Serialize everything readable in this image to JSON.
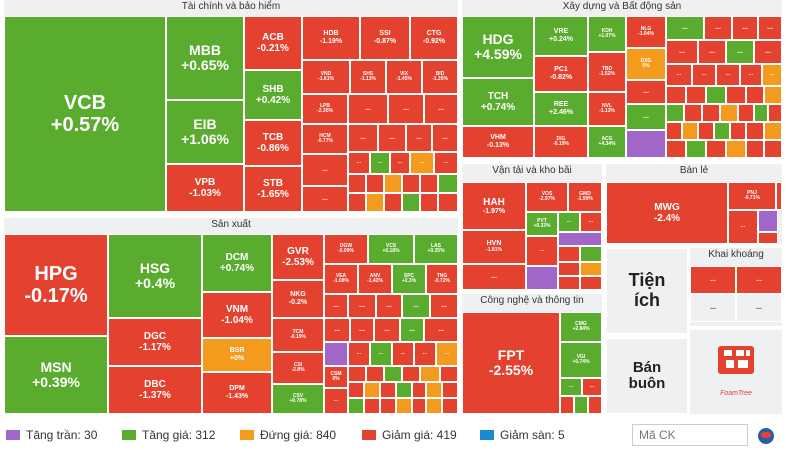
{
  "sections": {
    "finance": "Tài chính và bảo hiểm",
    "construction": "Xây dựng và Bất động sản",
    "production": "Sản xuất",
    "transport": "Vận tải và kho bãi",
    "retail": "Bán lẻ",
    "mining": "Khai khoáng",
    "tech": "Công nghệ và thông tin",
    "utilities": "Tiện ích",
    "wholesale": "Bán buôn"
  },
  "stocks": {
    "VCB": {
      "name": "VCB",
      "change": "+0.57%"
    },
    "MBB": {
      "name": "MBB",
      "change": "+0.65%"
    },
    "EIB": {
      "name": "EIB",
      "change": "+1.06%"
    },
    "VPB": {
      "name": "VPB",
      "change": "-1.03%"
    },
    "ACB": {
      "name": "ACB",
      "change": "-0.21%"
    },
    "SHB": {
      "name": "SHB",
      "change": "+0.42%"
    },
    "TCB": {
      "name": "TCB",
      "change": "-0.86%"
    },
    "STB": {
      "name": "STB",
      "change": "-1.65%"
    },
    "HDB": {
      "name": "HDB",
      "change": "-1.19%"
    },
    "SSI": {
      "name": "SSI",
      "change": "-0.87%"
    },
    "CTG": {
      "name": "CTG",
      "change": "-0.92%"
    },
    "VND": {
      "name": "VND",
      "change": "-1.61%"
    },
    "SHS": {
      "name": "SHS",
      "change": "-1.13%"
    },
    "VIX": {
      "name": "VIX",
      "change": "-1.45%"
    },
    "BID": {
      "name": "BID",
      "change": "-1.26%"
    },
    "LPB": {
      "name": "LPB",
      "change": "-2.35%"
    },
    "HCM": {
      "name": "HCM",
      "change": "-0.77%"
    },
    "HDG": {
      "name": "HDG",
      "change": "+4.59%"
    },
    "VRE": {
      "name": "VRE",
      "change": "+0.24%"
    },
    "KDH": {
      "name": "KDH",
      "change": "+1.07%"
    },
    "NLG": {
      "name": "NLG",
      "change": "-1.04%"
    },
    "PC1": {
      "name": "PC1",
      "change": "-0.82%"
    },
    "TBD": {
      "name": "TBD",
      "change": "-1.52%"
    },
    "DXG": {
      "name": "DXG",
      "change": "0%"
    },
    "TCH": {
      "name": "TCH",
      "change": "+0.74%"
    },
    "REE": {
      "name": "REE",
      "change": "+2.46%"
    },
    "NVL": {
      "name": "NVL",
      "change": "-1.13%"
    },
    "VHM": {
      "name": "VHM",
      "change": "-0.13%"
    },
    "DIG": {
      "name": "DIG",
      "change": "-0.19%"
    },
    "ACG": {
      "name": "ACG",
      "change": "+4.34%"
    },
    "HPG": {
      "name": "HPG",
      "change": "-0.17%"
    },
    "HSG": {
      "name": "HSG",
      "change": "+0.4%"
    },
    "DCM": {
      "name": "DCM",
      "change": "+0.74%"
    },
    "GVR": {
      "name": "GVR",
      "change": "-2.53%"
    },
    "DGW": {
      "name": "DGW",
      "change": "-0.09%"
    },
    "VCS": {
      "name": "VCS",
      "change": "+0.18%"
    },
    "LAS": {
      "name": "LAS",
      "change": "+0.35%"
    },
    "MSN": {
      "name": "MSN",
      "change": "+0.39%"
    },
    "DGC": {
      "name": "DGC",
      "change": "-1.17%"
    },
    "VNM": {
      "name": "VNM",
      "change": "-1.04%"
    },
    "NKG": {
      "name": "NKG",
      "change": "-0.2%"
    },
    "VEA": {
      "name": "VEA",
      "change": "-1.08%"
    },
    "ANV": {
      "name": "ANV",
      "change": "-1.42%"
    },
    "SPC": {
      "name": "SPC",
      "change": "+2.3%"
    },
    "TNG": {
      "name": "TNG",
      "change": "-0.72%"
    },
    "TCM": {
      "name": "TCM",
      "change": "-0.19%"
    },
    "BSR": {
      "name": "BSR",
      "change": "+0%"
    },
    "CSI": {
      "name": "CSI",
      "change": "-2.8%"
    },
    "DBC": {
      "name": "DBC",
      "change": "-1.37%"
    },
    "DPM": {
      "name": "DPM",
      "change": "-1.43%"
    },
    "CSV": {
      "name": "CSV",
      "change": "+0.78%"
    },
    "CSM": {
      "name": "CSM",
      "change": "0%"
    },
    "HAH": {
      "name": "HAH",
      "change": "-1.97%"
    },
    "VOS": {
      "name": "VOS",
      "change": "-2.97%"
    },
    "GMD": {
      "name": "GMD",
      "change": "-1.99%"
    },
    "PVT": {
      "name": "PVT",
      "change": "+0.33%"
    },
    "HVN": {
      "name": "HVN",
      "change": "-1.81%"
    },
    "MWG": {
      "name": "MWG",
      "change": "-2.4%"
    },
    "PNJ": {
      "name": "PNJ",
      "change": "-0.71%"
    },
    "FPT": {
      "name": "FPT",
      "change": "-2.55%"
    },
    "CMG": {
      "name": "CMG",
      "change": "+2.84%"
    },
    "VGI": {
      "name": "VGI",
      "change": "+0.74%"
    }
  },
  "more": "...",
  "legend": {
    "ceiling": "Tăng trần: 30",
    "up": "Tăng giá: 312",
    "flat": "Đứng giá: 840",
    "down": "Giảm giá: 419",
    "floor": "Giảm sàn: 5"
  },
  "colors": {
    "up": "#5aac2e",
    "down": "#e4412f",
    "flat": "#f49a1c",
    "ceiling": "#a066c8",
    "floor": "#1a8bd0"
  },
  "search": {
    "placeholder": "Mã CK"
  },
  "logo_text": "FoamTree"
}
